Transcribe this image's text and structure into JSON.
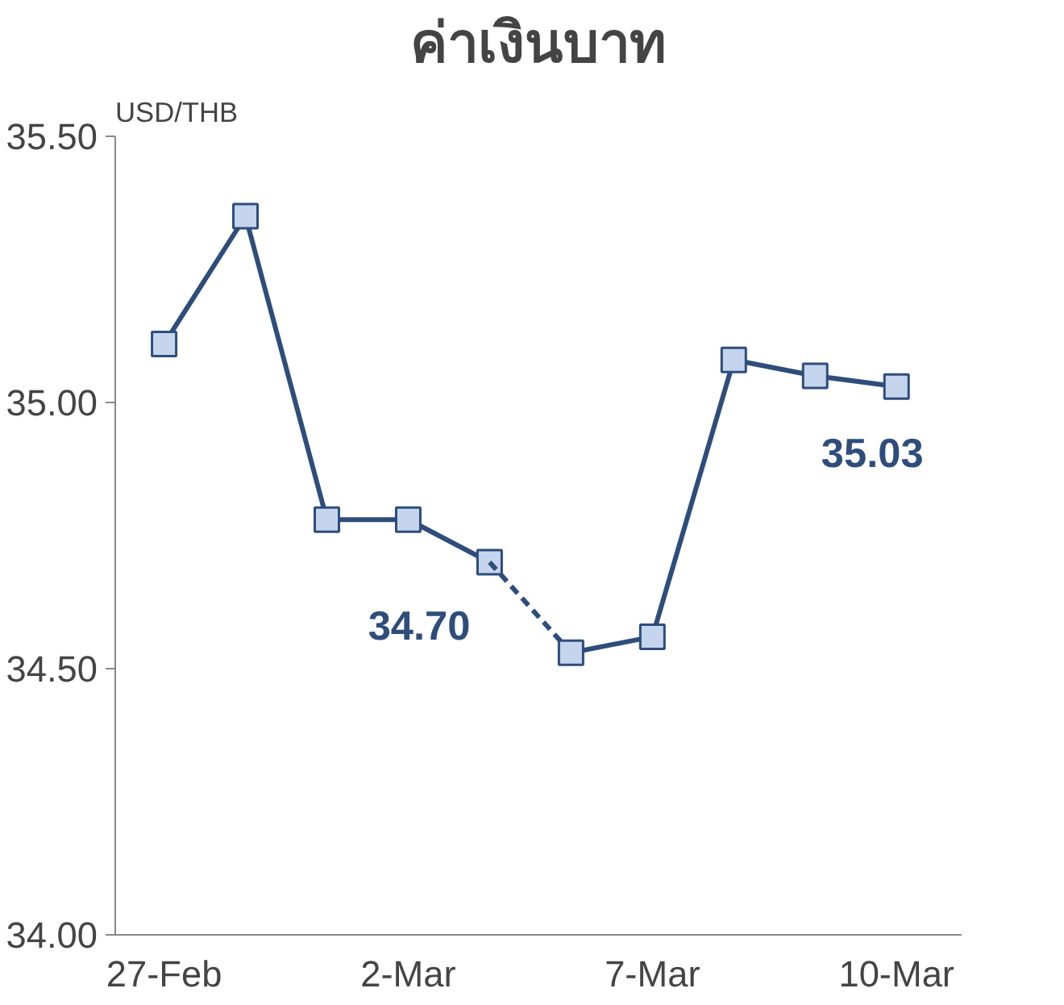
{
  "chart_data": {
    "type": "line",
    "title": "ค่าเงินบาท",
    "ylabel": "USD/THB",
    "categories": [
      "27-Feb",
      null,
      null,
      "2-Mar",
      null,
      null,
      "7-Mar",
      null,
      null,
      "10-Mar"
    ],
    "series": [
      {
        "color": "#2e4d7b",
        "line_style": "solid",
        "marker": "square",
        "values": [
          35.11,
          35.35,
          34.78,
          34.78,
          34.7,
          null,
          null,
          null,
          null,
          null
        ],
        "value_labels": [
          null,
          null,
          null,
          null,
          "34.70",
          null,
          null,
          null,
          null,
          null
        ]
      },
      {
        "color": "#2e4d7b",
        "line_style": "dashed",
        "marker": "none",
        "values": [
          null,
          null,
          null,
          null,
          34.7,
          34.53,
          null,
          null,
          null,
          null
        ]
      },
      {
        "color": "#2e4d7b",
        "line_style": "solid",
        "marker": "square",
        "values": [
          null,
          null,
          null,
          null,
          null,
          34.53,
          34.56,
          35.08,
          35.05,
          35.03
        ],
        "value_labels": [
          null,
          null,
          null,
          null,
          null,
          null,
          null,
          null,
          null,
          "35.03"
        ]
      }
    ],
    "ylim": [
      34.0,
      35.5
    ],
    "yticks": [
      {
        "value": 34.0,
        "label": "34.00"
      },
      {
        "value": 34.5,
        "label": "34.50"
      },
      {
        "value": 35.0,
        "label": "35.00"
      },
      {
        "value": 35.5,
        "label": "35.50"
      }
    ],
    "grid": false
  }
}
